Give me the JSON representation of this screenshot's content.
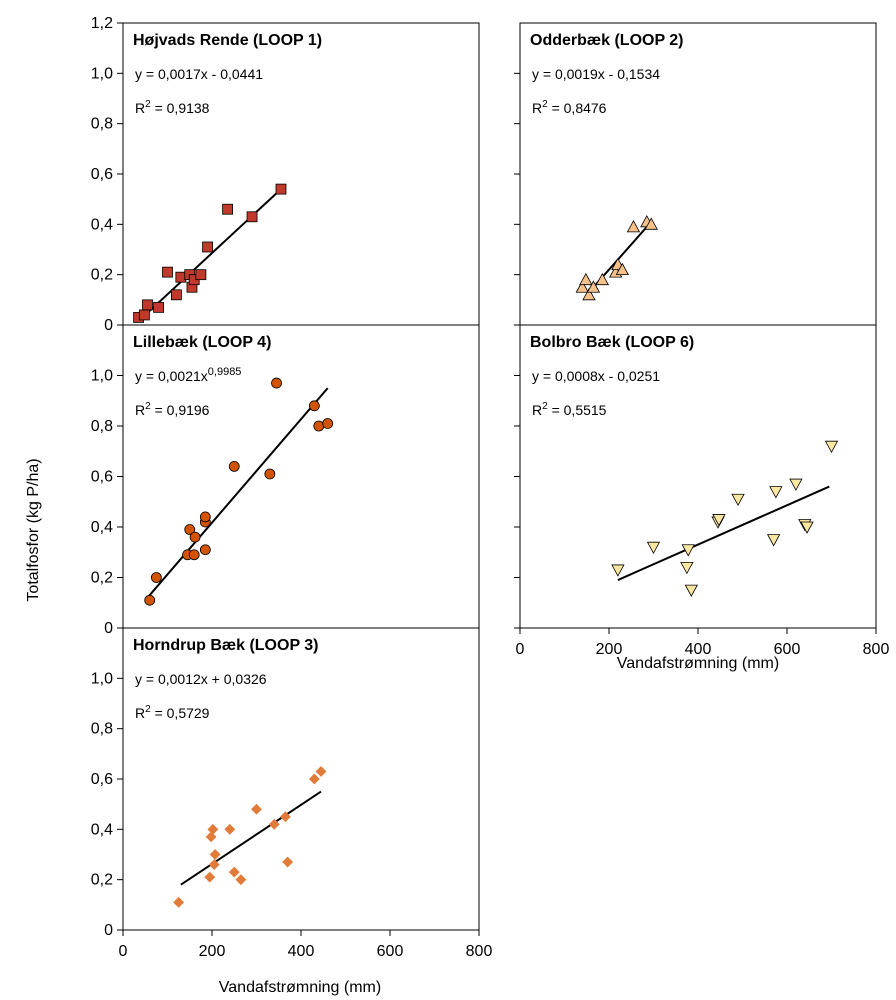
{
  "chart_data": {
    "type": "scatter",
    "ylabel": "Totalfosfor (kg P/ha)",
    "xlabel": "Vandafstrømning (mm)",
    "xlim": [
      0,
      800
    ],
    "ylim": [
      0,
      1.2
    ],
    "x_ticks": [
      "0",
      "200",
      "400",
      "600",
      "800"
    ],
    "y_ticks_top": [
      "0",
      "0,2",
      "0,4",
      "0,6",
      "0,8",
      "1,0",
      "1,2"
    ],
    "y_ticks": [
      "0",
      "0,2",
      "0,4",
      "0,6",
      "0,8",
      "1,0"
    ],
    "panels": [
      {
        "id": "loop1",
        "title": "Højvads Rende (LOOP 1)",
        "equation": "y = 0,0017x - 0,0441",
        "r2_value": "= 0,9138",
        "marker": "square",
        "color": "#c0392b",
        "fit": {
          "x": [
            50,
            355
          ],
          "y": [
            0.04,
            0.54
          ]
        },
        "points": [
          {
            "x": 35,
            "y": 0.03
          },
          {
            "x": 48,
            "y": 0.04
          },
          {
            "x": 55,
            "y": 0.08
          },
          {
            "x": 80,
            "y": 0.07
          },
          {
            "x": 100,
            "y": 0.21
          },
          {
            "x": 120,
            "y": 0.12
          },
          {
            "x": 130,
            "y": 0.19
          },
          {
            "x": 150,
            "y": 0.2
          },
          {
            "x": 155,
            "y": 0.15
          },
          {
            "x": 160,
            "y": 0.18
          },
          {
            "x": 175,
            "y": 0.2
          },
          {
            "x": 190,
            "y": 0.31
          },
          {
            "x": 235,
            "y": 0.46
          },
          {
            "x": 290,
            "y": 0.43
          },
          {
            "x": 355,
            "y": 0.54
          }
        ]
      },
      {
        "id": "loop2",
        "title": "Odderbæk (LOOP 2)",
        "equation": "y = 0,0019x - 0,1534",
        "r2_value": "= 0,8476",
        "marker": "triangle-up",
        "color": "#f5c08a",
        "fit": {
          "x": [
            150,
            295
          ],
          "y": [
            0.12,
            0.41
          ]
        },
        "points": [
          {
            "x": 140,
            "y": 0.15
          },
          {
            "x": 148,
            "y": 0.18
          },
          {
            "x": 155,
            "y": 0.12
          },
          {
            "x": 165,
            "y": 0.15
          },
          {
            "x": 185,
            "y": 0.18
          },
          {
            "x": 215,
            "y": 0.21
          },
          {
            "x": 220,
            "y": 0.24
          },
          {
            "x": 230,
            "y": 0.22
          },
          {
            "x": 255,
            "y": 0.39
          },
          {
            "x": 285,
            "y": 0.41
          },
          {
            "x": 295,
            "y": 0.4
          }
        ]
      },
      {
        "id": "loop4",
        "title": "Lillebæk (LOOP 4)",
        "equation": "y = 0,0021x",
        "equation_exp": "0,9985",
        "r2_value": "= 0,9196",
        "marker": "circle",
        "color": "#d35400",
        "fit": {
          "x": [
            55,
            460
          ],
          "y": [
            0.12,
            0.95
          ]
        },
        "points": [
          {
            "x": 60,
            "y": 0.11
          },
          {
            "x": 75,
            "y": 0.2
          },
          {
            "x": 145,
            "y": 0.29
          },
          {
            "x": 150,
            "y": 0.39
          },
          {
            "x": 160,
            "y": 0.29
          },
          {
            "x": 162,
            "y": 0.36
          },
          {
            "x": 185,
            "y": 0.42
          },
          {
            "x": 185,
            "y": 0.44
          },
          {
            "x": 185,
            "y": 0.31
          },
          {
            "x": 250,
            "y": 0.64
          },
          {
            "x": 330,
            "y": 0.61
          },
          {
            "x": 345,
            "y": 0.97
          },
          {
            "x": 430,
            "y": 0.88
          },
          {
            "x": 440,
            "y": 0.8
          },
          {
            "x": 460,
            "y": 0.81
          }
        ]
      },
      {
        "id": "loop6",
        "title": "Bolbro Bæk (LOOP 6)",
        "equation": "y = 0,0008x - 0,0251",
        "r2_value": "= 0,5515",
        "marker": "triangle-down",
        "color": "#fbe6a2",
        "fit": {
          "x": [
            220,
            695
          ],
          "y": [
            0.19,
            0.56
          ]
        },
        "points": [
          {
            "x": 220,
            "y": 0.23
          },
          {
            "x": 300,
            "y": 0.32
          },
          {
            "x": 375,
            "y": 0.24
          },
          {
            "x": 378,
            "y": 0.31
          },
          {
            "x": 385,
            "y": 0.15
          },
          {
            "x": 445,
            "y": 0.42
          },
          {
            "x": 447,
            "y": 0.43
          },
          {
            "x": 490,
            "y": 0.51
          },
          {
            "x": 570,
            "y": 0.35
          },
          {
            "x": 575,
            "y": 0.54
          },
          {
            "x": 620,
            "y": 0.57
          },
          {
            "x": 640,
            "y": 0.41
          },
          {
            "x": 645,
            "y": 0.4
          },
          {
            "x": 700,
            "y": 0.72
          }
        ]
      },
      {
        "id": "loop3",
        "title": "Horndrup Bæk (LOOP 3)",
        "equation": "y = 0,0012x + 0,0326",
        "r2_value": "= 0,5729",
        "marker": "diamond",
        "color": "#e07b39",
        "fit": {
          "x": [
            130,
            445
          ],
          "y": [
            0.18,
            0.55
          ]
        },
        "points": [
          {
            "x": 125,
            "y": 0.11
          },
          {
            "x": 195,
            "y": 0.21
          },
          {
            "x": 198,
            "y": 0.37
          },
          {
            "x": 202,
            "y": 0.4
          },
          {
            "x": 205,
            "y": 0.26
          },
          {
            "x": 207,
            "y": 0.3
          },
          {
            "x": 240,
            "y": 0.4
          },
          {
            "x": 250,
            "y": 0.23
          },
          {
            "x": 265,
            "y": 0.2
          },
          {
            "x": 300,
            "y": 0.48
          },
          {
            "x": 340,
            "y": 0.42
          },
          {
            "x": 365,
            "y": 0.45
          },
          {
            "x": 370,
            "y": 0.27
          },
          {
            "x": 430,
            "y": 0.6
          },
          {
            "x": 445,
            "y": 0.63
          }
        ]
      }
    ]
  }
}
